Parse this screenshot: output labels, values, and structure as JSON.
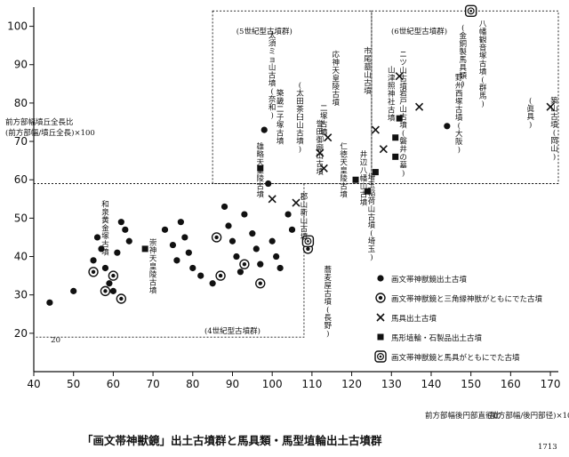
{
  "chart_data": {
    "type": "scatter",
    "title": "「画文帯神獣鏡」出土古墳群と馬具類・馬型埴輪出土古墳群",
    "xlabel": "前方部幅後円部直径比",
    "xlabel_formula": "(前方部幅/後円部径)×100",
    "ylabel": "前方部幅墳丘全長比",
    "ylabel_formula": "(前方部幅/墳丘全長)×100",
    "xlim": [
      40,
      172
    ],
    "ylim": [
      10,
      105
    ],
    "x_ticks": [
      40,
      50,
      60,
      70,
      80,
      90,
      100,
      110,
      120,
      130,
      140,
      150,
      160,
      170
    ],
    "y_ticks": [
      20,
      30,
      40,
      50,
      60,
      70,
      80,
      90,
      100
    ],
    "y20_marker": "20",
    "grid": false,
    "legend_position": "bottom-right",
    "legend": [
      {
        "symbol": "dot",
        "label": "画文帯神獣鏡出土古墳"
      },
      {
        "symbol": "double-circle",
        "label": "画文帯神獣鏡と三角縁神獣がともにでた古墳"
      },
      {
        "symbol": "cross",
        "label": "馬具出土古墳"
      },
      {
        "symbol": "square",
        "label": "馬形埴輪・石製品出土古墳"
      },
      {
        "symbol": "boxed-mirror",
        "label": "画文帯神獣鏡と馬具がともにでた古墳"
      }
    ],
    "group_labels": [
      "(4世紀型古墳群)",
      "(5世紀型古墳群)",
      "(6世紀型古墳群)"
    ],
    "series": [
      {
        "name": "画文帯神獣鏡出土古墳",
        "symbol": "dot",
        "points": [
          {
            "x": 44,
            "y": 28
          },
          {
            "x": 50,
            "y": 31
          },
          {
            "x": 55,
            "y": 39
          },
          {
            "x": 56,
            "y": 45
          },
          {
            "x": 57,
            "y": 42
          },
          {
            "x": 58,
            "y": 37
          },
          {
            "x": 59,
            "y": 33
          },
          {
            "x": 60,
            "y": 31
          },
          {
            "x": 61,
            "y": 41
          },
          {
            "x": 62,
            "y": 49
          },
          {
            "x": 63,
            "y": 47
          },
          {
            "x": 64,
            "y": 44
          },
          {
            "x": 73,
            "y": 47
          },
          {
            "x": 75,
            "y": 43
          },
          {
            "x": 76,
            "y": 39
          },
          {
            "x": 77,
            "y": 49
          },
          {
            "x": 78,
            "y": 45
          },
          {
            "x": 79,
            "y": 41
          },
          {
            "x": 80,
            "y": 37
          },
          {
            "x": 82,
            "y": 35
          },
          {
            "x": 85,
            "y": 33
          },
          {
            "x": 88,
            "y": 53
          },
          {
            "x": 89,
            "y": 48
          },
          {
            "x": 90,
            "y": 44
          },
          {
            "x": 91,
            "y": 40
          },
          {
            "x": 92,
            "y": 36
          },
          {
            "x": 93,
            "y": 51
          },
          {
            "x": 95,
            "y": 46
          },
          {
            "x": 96,
            "y": 42
          },
          {
            "x": 97,
            "y": 38
          },
          {
            "x": 98,
            "y": 73
          },
          {
            "x": 99,
            "y": 59
          },
          {
            "x": 100,
            "y": 44
          },
          {
            "x": 101,
            "y": 40
          },
          {
            "x": 102,
            "y": 37
          },
          {
            "x": 104,
            "y": 51
          },
          {
            "x": 105,
            "y": 47
          },
          {
            "x": 109,
            "y": 43
          },
          {
            "x": 144,
            "y": 74
          }
        ]
      },
      {
        "name": "画文帯神獣鏡と三角縁神獣がともにでた古墳",
        "symbol": "double-circle",
        "points": [
          {
            "x": 55,
            "y": 36
          },
          {
            "x": 58,
            "y": 31
          },
          {
            "x": 60,
            "y": 35
          },
          {
            "x": 62,
            "y": 29
          },
          {
            "x": 86,
            "y": 45
          },
          {
            "x": 87,
            "y": 35
          },
          {
            "x": 93,
            "y": 38
          },
          {
            "x": 97,
            "y": 33
          },
          {
            "x": 109,
            "y": 42
          }
        ]
      },
      {
        "name": "馬具出土古墳",
        "symbol": "cross",
        "points": [
          {
            "x": 100,
            "y": 55
          },
          {
            "x": 106,
            "y": 54
          },
          {
            "x": 112,
            "y": 67
          },
          {
            "x": 113,
            "y": 63
          },
          {
            "x": 114,
            "y": 71
          },
          {
            "x": 126,
            "y": 73
          },
          {
            "x": 128,
            "y": 68
          },
          {
            "x": 132,
            "y": 87
          },
          {
            "x": 137,
            "y": 79
          },
          {
            "x": 170,
            "y": 79
          }
        ]
      },
      {
        "name": "馬形埴輪・石製品出土古墳",
        "symbol": "square",
        "points": [
          {
            "x": 68,
            "y": 42
          },
          {
            "x": 97,
            "y": 63
          },
          {
            "x": 121,
            "y": 60
          },
          {
            "x": 124,
            "y": 57
          },
          {
            "x": 126,
            "y": 62
          },
          {
            "x": 131,
            "y": 66
          },
          {
            "x": 131,
            "y": 71
          },
          {
            "x": 132,
            "y": 76
          }
        ]
      },
      {
        "name": "画文帯神獣鏡と馬具がともにでた古墳",
        "symbol": "boxed-mirror",
        "points": [
          {
            "x": 109,
            "y": 44
          },
          {
            "x": 150,
            "y": 104
          }
        ]
      }
    ],
    "annotations": [
      {
        "text": "八幡観音塚古墳(群馬)",
        "x": 153,
        "y": 100
      },
      {
        "text": "(金銅製馬具類)",
        "x": 148,
        "y": 99
      },
      {
        "text": "ニツ山古墳",
        "x": 133,
        "y": 92
      },
      {
        "text": "山津照神社古墳",
        "x": 130,
        "y": 88
      },
      {
        "text": "岩戸山古墳(磐井の墓)",
        "x": 133,
        "y": 82
      },
      {
        "text": "野州西塚古墳(大阪)",
        "x": 147,
        "y": 86
      },
      {
        "text": "築山古墳(岡山)",
        "x": 171,
        "y": 80
      },
      {
        "text": "(眞具)",
        "x": 165,
        "y": 80
      },
      {
        "text": "市尾墓山古墳",
        "x": 124,
        "y": 93
      },
      {
        "text": "応神天皇陵古墳",
        "x": 116,
        "y": 92
      },
      {
        "text": "仁徳天皇陵古墳",
        "x": 118,
        "y": 68
      },
      {
        "text": "二塚古墳",
        "x": 113,
        "y": 78
      },
      {
        "text": "井辺八幡山古墳",
        "x": 123,
        "y": 66
      },
      {
        "text": "埼玉稲荷山古墳(埼玉)",
        "x": 125,
        "y": 60
      },
      {
        "text": "誉田御廟山古墳",
        "x": 112,
        "y": 74
      },
      {
        "text": "築畿二子塚古墳",
        "x": 102,
        "y": 82
      },
      {
        "text": "太須ミョ山古墳(奈和)",
        "x": 100,
        "y": 97
      },
      {
        "text": "(太田茶臼山古墳)",
        "x": 107,
        "y": 84
      },
      {
        "text": "雄略天皇陵古墳",
        "x": 97,
        "y": 68
      },
      {
        "text": "郡山新山古墳",
        "x": 108,
        "y": 55
      },
      {
        "text": "蕎麦屋古墳(長野)",
        "x": 114,
        "y": 36
      },
      {
        "text": "崇神天皇陵古墳",
        "x": 70,
        "y": 43
      },
      {
        "text": "和泉黄金塚古墳",
        "x": 58,
        "y": 53
      },
      {
        "text": "(5世紀型古墳群)",
        "x": 98,
        "y": 98
      },
      {
        "text": "(6世紀型古墳群)",
        "x": 137,
        "y": 98
      },
      {
        "text": "(4世紀型古墳群)",
        "x": 90,
        "y": 20
      }
    ],
    "region_boundaries": {
      "horizontal_line_y": 59,
      "region_5c": {
        "x": [
          85,
          125
        ],
        "y": [
          59,
          104
        ]
      },
      "region_6c": {
        "x": [
          125,
          172
        ],
        "y": [
          59,
          104
        ]
      },
      "region_4c": {
        "x": [
          40,
          108
        ],
        "y": [
          19,
          59
        ]
      }
    }
  },
  "page_meta": {
    "corner_mark": "1713"
  }
}
